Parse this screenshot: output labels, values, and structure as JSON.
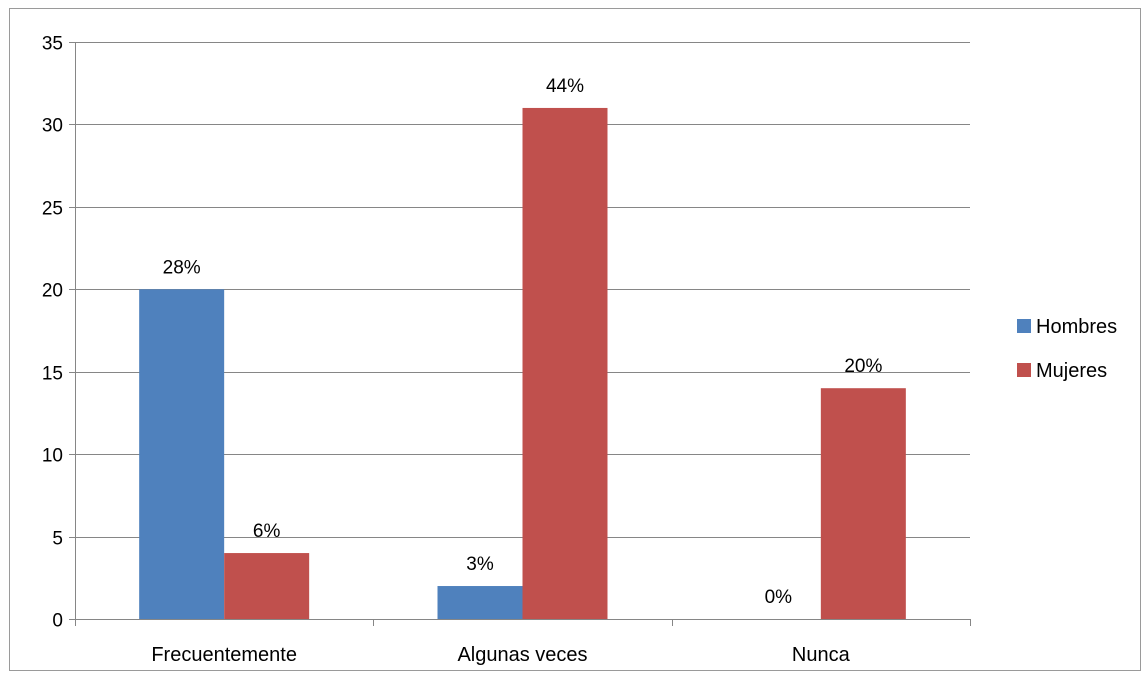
{
  "chart_data": {
    "type": "bar",
    "title": "",
    "xlabel": "",
    "ylabel": "",
    "categories": [
      "Frecuentemente",
      "Algunas veces",
      "Nunca"
    ],
    "ylim": [
      0,
      35
    ],
    "yticks": [
      0,
      5,
      10,
      15,
      20,
      25,
      30,
      35
    ],
    "grid": true,
    "legend_position": "right",
    "series": [
      {
        "name": "Hombres",
        "color": "#4F81BD",
        "values": [
          20,
          2,
          0
        ],
        "labels": [
          "28%",
          "3%",
          "0%"
        ]
      },
      {
        "name": "Mujeres",
        "color": "#C0504D",
        "values": [
          4,
          31,
          14
        ],
        "labels": [
          "6%",
          "44%",
          "20%"
        ]
      }
    ]
  }
}
